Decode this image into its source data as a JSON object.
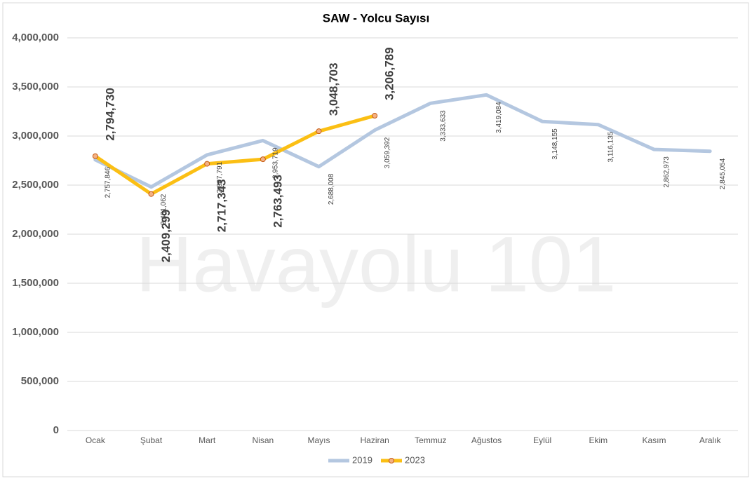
{
  "chart_data": {
    "type": "line",
    "title": "SAW - Yolcu Sayısı",
    "watermark": "Havayolu 101",
    "categories": [
      "Ocak",
      "Şubat",
      "Mart",
      "Nisan",
      "Mayıs",
      "Haziran",
      "Temmuz",
      "Ağustos",
      "Eylül",
      "Ekim",
      "Kasım",
      "Aralık"
    ],
    "series": [
      {
        "name": "2019",
        "color": "#b4c7e0",
        "values": [
          2757846,
          2481062,
          2807791,
          2953719,
          2688008,
          3059392,
          3333633,
          3419084,
          3148155,
          3116135,
          2862973,
          2845054
        ],
        "value_labels": [
          "2,757,846",
          "2,481,062",
          "2,807,791",
          "2,953,719",
          "2,688,008",
          "3,059,392",
          "3,333,633",
          "3,419,084",
          "3,148,155",
          "3,116,135",
          "2,862,973",
          "2,845,054"
        ]
      },
      {
        "name": "2023",
        "color": "#fbbf14",
        "values": [
          2794730,
          2409299,
          2717343,
          2763493,
          3048703,
          3206789,
          null,
          null,
          null,
          null,
          null,
          null
        ],
        "value_labels": [
          "2,794,730",
          "2,409,299",
          "2,717,343",
          "2,763,493",
          "3,048,703",
          "3,206,789",
          null,
          null,
          null,
          null,
          null,
          null
        ]
      }
    ],
    "ylim": [
      0,
      4000000
    ],
    "yticks": [
      0,
      {
        "value": 500000,
        "label": "500,000"
      },
      {
        "value": 1000000,
        "label": "1,000,000"
      },
      {
        "value": 1500000,
        "label": "1,500,000"
      },
      {
        "value": 2000000,
        "label": "2,000,000"
      },
      {
        "value": 2500000,
        "label": "2,500,000"
      },
      {
        "value": 3000000,
        "label": "3,000,000"
      },
      {
        "value": 3500000,
        "label": "3,500,000"
      },
      {
        "value": 4000000,
        "label": "4,000,000"
      }
    ],
    "grid": true,
    "legend": "bottom"
  }
}
